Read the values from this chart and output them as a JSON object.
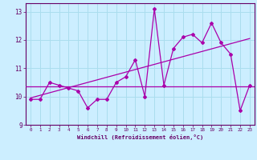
{
  "x_values": [
    0,
    1,
    2,
    3,
    4,
    5,
    6,
    7,
    8,
    9,
    10,
    11,
    12,
    13,
    14,
    15,
    16,
    17,
    18,
    19,
    20,
    21,
    22,
    23
  ],
  "y_values": [
    9.9,
    9.9,
    10.5,
    10.4,
    10.3,
    10.2,
    9.6,
    9.9,
    9.9,
    10.5,
    10.7,
    11.3,
    10.0,
    13.1,
    10.4,
    11.7,
    12.1,
    12.2,
    11.9,
    12.6,
    11.9,
    11.5,
    9.5,
    10.4
  ],
  "line_color": "#aa00aa",
  "marker_color": "#aa00aa",
  "bg_color": "#cceeff",
  "grid_color": "#aaddee",
  "axis_color": "#660066",
  "text_color": "#660066",
  "xlabel": "Windchill (Refroidissement éolien,°C)",
  "xlim": [
    -0.5,
    23.5
  ],
  "ylim": [
    9.0,
    13.3
  ],
  "yticks": [
    9,
    10,
    11,
    12,
    13
  ],
  "xticks": [
    0,
    1,
    2,
    3,
    4,
    5,
    6,
    7,
    8,
    9,
    10,
    11,
    12,
    13,
    14,
    15,
    16,
    17,
    18,
    19,
    20,
    21,
    22,
    23
  ],
  "horizontal_line_y": 10.37,
  "trend_x_start": 0,
  "trend_x_end": 23,
  "trend_y_start": 9.95,
  "trend_y_end": 12.05
}
